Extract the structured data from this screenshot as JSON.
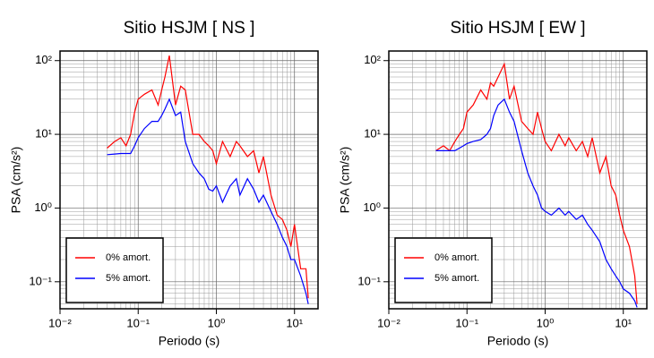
{
  "chart_data": [
    {
      "type": "line",
      "title": "Sitio HSJM [ NS ]",
      "x_label": "Periodo (s)",
      "y_label": "PSA (cm/s²)",
      "x_scale": "log",
      "y_scale": "log",
      "grid": true,
      "minor_grid": true,
      "legend_position": "lower left",
      "xlim": [
        0.01,
        20
      ],
      "ylim": [
        0.043,
        135
      ],
      "xticks": [
        {
          "value": 0.01,
          "label": "10⁻²"
        },
        {
          "value": 0.1,
          "label": "10⁻¹"
        },
        {
          "value": 1,
          "label": "10⁰"
        },
        {
          "value": 10,
          "label": "10¹"
        }
      ],
      "yticks": [
        {
          "value": 0.1,
          "label": "10⁻¹"
        },
        {
          "value": 1,
          "label": "10⁰"
        },
        {
          "value": 10,
          "label": "10¹"
        },
        {
          "value": 100,
          "label": "10²"
        }
      ],
      "x": [
        0.04,
        0.05,
        0.06,
        0.07,
        0.08,
        0.09,
        0.1,
        0.12,
        0.15,
        0.18,
        0.2,
        0.22,
        0.25,
        0.3,
        0.35,
        0.4,
        0.5,
        0.6,
        0.7,
        0.8,
        0.9,
        1,
        1.2,
        1.5,
        1.8,
        2,
        2.5,
        3,
        3.5,
        4,
        5,
        6,
        7,
        8,
        9,
        10,
        12,
        14,
        15
      ],
      "series": [
        {
          "name": "0% amort.",
          "color": "#ff0000",
          "values": [
            6.5,
            8,
            9,
            7,
            10,
            20,
            30,
            35,
            40,
            25,
            40,
            60,
            117,
            25,
            45,
            40,
            10,
            10,
            8,
            7,
            6,
            4,
            8,
            5,
            8,
            7,
            5,
            6,
            3,
            5,
            1.5,
            0.8,
            0.7,
            0.5,
            0.3,
            0.6,
            0.15,
            0.15,
            0.06
          ]
        },
        {
          "name": "5% amort.",
          "color": "#0000ff",
          "values": [
            5.3,
            5.4,
            5.5,
            5.5,
            5.5,
            7,
            9,
            12,
            15,
            15,
            18,
            22,
            30,
            18,
            20,
            8,
            4,
            3,
            2.5,
            1.8,
            1.7,
            2,
            1.2,
            2,
            2.5,
            1.5,
            2.5,
            1.8,
            1.2,
            1.5,
            0.9,
            0.6,
            0.4,
            0.3,
            0.2,
            0.2,
            0.12,
            0.07,
            0.05
          ]
        }
      ]
    },
    {
      "type": "line",
      "title": "Sitio HSJM [ EW ]",
      "x_label": "Periodo (s)",
      "y_label": "PSA (cm/s²)",
      "x_scale": "log",
      "y_scale": "log",
      "grid": true,
      "minor_grid": true,
      "legend_position": "lower left",
      "xlim": [
        0.01,
        20
      ],
      "ylim": [
        0.043,
        135
      ],
      "xticks": [
        {
          "value": 0.01,
          "label": "10⁻²"
        },
        {
          "value": 0.1,
          "label": "10⁻¹"
        },
        {
          "value": 1,
          "label": "10⁰"
        },
        {
          "value": 10,
          "label": "10¹"
        }
      ],
      "yticks": [
        {
          "value": 0.1,
          "label": "10⁻¹"
        },
        {
          "value": 1,
          "label": "10⁰"
        },
        {
          "value": 10,
          "label": "10¹"
        },
        {
          "value": 100,
          "label": "10²"
        }
      ],
      "x": [
        0.04,
        0.05,
        0.06,
        0.07,
        0.08,
        0.09,
        0.1,
        0.12,
        0.15,
        0.18,
        0.2,
        0.22,
        0.25,
        0.3,
        0.35,
        0.4,
        0.5,
        0.6,
        0.7,
        0.8,
        0.9,
        1,
        1.2,
        1.5,
        1.8,
        2,
        2.5,
        3,
        3.5,
        4,
        5,
        6,
        7,
        8,
        9,
        10,
        12,
        14,
        15
      ],
      "series": [
        {
          "name": "0% amort.",
          "color": "#ff0000",
          "values": [
            6,
            7,
            6,
            8,
            10,
            12,
            20,
            25,
            40,
            30,
            50,
            45,
            60,
            90,
            30,
            45,
            15,
            12,
            10,
            20,
            12,
            8,
            6,
            10,
            7,
            9,
            6,
            8,
            5,
            9,
            3,
            5,
            2,
            1.5,
            0.8,
            0.5,
            0.3,
            0.12,
            0.05
          ]
        },
        {
          "name": "5% amort.",
          "color": "#0000ff",
          "values": [
            6,
            6,
            6,
            6,
            6.5,
            7,
            7.5,
            8,
            8.5,
            10,
            12,
            18,
            25,
            30,
            20,
            15,
            6,
            3,
            2,
            1.5,
            1,
            0.9,
            0.8,
            1,
            0.8,
            0.9,
            0.7,
            0.8,
            0.6,
            0.5,
            0.35,
            0.2,
            0.15,
            0.12,
            0.1,
            0.08,
            0.07,
            0.055,
            0.045
          ]
        }
      ]
    }
  ]
}
